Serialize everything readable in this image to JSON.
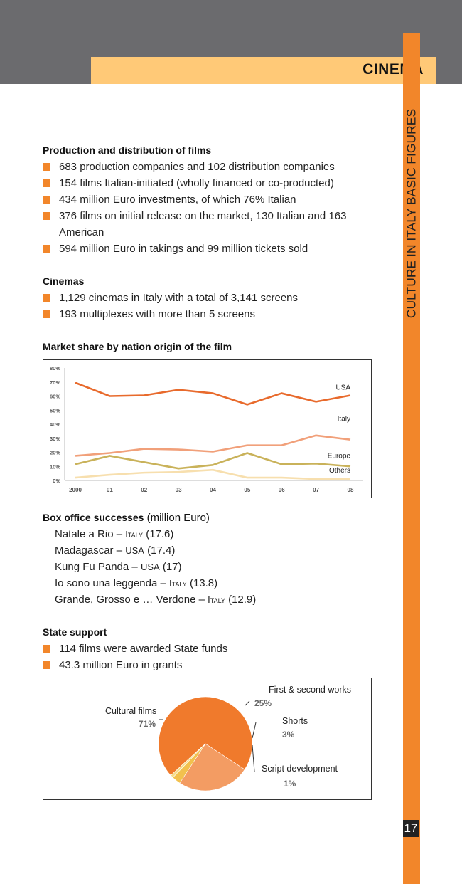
{
  "header": {
    "title": "CINEMA"
  },
  "sidebar": {
    "vertical_title": "CULTURE IN ITALY BASIC FIGURES",
    "page_number": "17"
  },
  "production": {
    "heading": "Production and distribution of films",
    "items": [
      "683 production companies and 102 distribution companies",
      "154 films Italian-initiated (wholly financed or co-producted)",
      "434 million Euro investments, of which 76% Italian",
      "376 films on initial release on the market, 130 Italian and 163 American",
      "594 million Euro in takings and 99 million tickets sold"
    ]
  },
  "cinemas": {
    "heading": "Cinemas",
    "items": [
      "1,129 cinemas in Italy with a total of 3,141 screens",
      "193 multiplexes with more than 5 screens"
    ]
  },
  "market_share": {
    "heading": "Market share by nation origin of the film"
  },
  "box_office": {
    "heading": "Box office successes",
    "unit": " (million Euro)",
    "films": [
      {
        "title": "Natale a Rio – ",
        "origin": "Italy",
        "value": " (17.6)"
      },
      {
        "title": "Madagascar – ",
        "origin": "USA",
        "value": " (17.4)"
      },
      {
        "title": "Kung Fu Panda – ",
        "origin": "USA",
        "value": " (17)"
      },
      {
        "title": "Io sono una leggenda – ",
        "origin": "Italy",
        "value": " (13.8)"
      },
      {
        "title": "Grande, Grosso e … Verdone – ",
        "origin": "Italy",
        "value": " (12.9)"
      }
    ]
  },
  "state_support": {
    "heading": "State support",
    "items": [
      "114 films were awarded State funds",
      "43.3 million Euro in grants"
    ]
  },
  "colors": {
    "accent": "#f2862a",
    "header_band": "#6b6b6e",
    "title_bar": "#ffc977"
  },
  "chart_data": [
    {
      "type": "line",
      "x": [
        "2000",
        "01",
        "02",
        "03",
        "04",
        "05",
        "06",
        "07",
        "08"
      ],
      "yticks": [
        "0%",
        "10%",
        "20%",
        "30%",
        "40%",
        "50%",
        "60%",
        "70%",
        "80%"
      ],
      "ylim": [
        0,
        80
      ],
      "grid": false,
      "series": [
        {
          "name": "USA",
          "color": "#e86a2c",
          "values": [
            69.5,
            60,
            60.5,
            64.5,
            62,
            54,
            62,
            56,
            60.5
          ]
        },
        {
          "name": "Italy",
          "color": "#f1a07a",
          "values": [
            17.5,
            19.5,
            22.5,
            22,
            20.5,
            25,
            25,
            32,
            29
          ]
        },
        {
          "name": "Europe",
          "color": "#c9b25a",
          "values": [
            11.5,
            17.5,
            13,
            8.5,
            11,
            19.5,
            11.5,
            12,
            10
          ]
        },
        {
          "name": "Others",
          "color": "#f7dfae",
          "values": [
            2,
            4,
            5.5,
            6,
            7.5,
            2,
            2,
            1,
            1
          ]
        }
      ]
    },
    {
      "type": "pie",
      "slices": [
        {
          "label": "Cultural films",
          "pct_label": "71%",
          "value": 71,
          "color": "#f07a2c"
        },
        {
          "label": "First & second works",
          "pct_label": "25%",
          "value": 25,
          "color": "#f39c63"
        },
        {
          "label": "Shorts",
          "pct_label": "3%",
          "value": 3,
          "color": "#f2c14e"
        },
        {
          "label": "Script development",
          "pct_label": "1%",
          "value": 1,
          "color": "#f5dc8a"
        }
      ]
    }
  ]
}
